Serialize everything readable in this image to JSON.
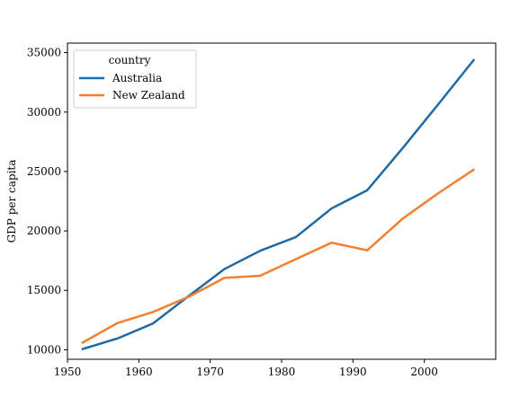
{
  "chart_data": {
    "type": "line",
    "title": "",
    "xlabel": "",
    "ylabel": "GDP per capita",
    "xlim": [
      1950,
      2010
    ],
    "ylim": [
      9200,
      35800
    ],
    "xticks": [
      1950,
      1960,
      1970,
      1980,
      1990,
      2000
    ],
    "yticks": [
      10000,
      15000,
      20000,
      25000,
      30000,
      35000
    ],
    "grid": false,
    "legend": {
      "title": "country",
      "placement": "top-left"
    },
    "series": [
      {
        "name": "Australia",
        "color": "#1f6aa5",
        "x": [
          1952,
          1957,
          1962,
          1967,
          1972,
          1977,
          1982,
          1987,
          1992,
          1997,
          2002,
          2007
        ],
        "y": [
          10040,
          10950,
          12220,
          14530,
          16790,
          18330,
          19480,
          21890,
          23420,
          26990,
          30690,
          34440
        ]
      },
      {
        "name": "New Zealand",
        "color": "#f37f31",
        "x": [
          1952,
          1957,
          1962,
          1967,
          1972,
          1977,
          1982,
          1987,
          1992,
          1997,
          2002,
          2007
        ],
        "y": [
          10560,
          12250,
          13180,
          14460,
          16050,
          16230,
          17630,
          19010,
          18370,
          21050,
          23190,
          25190
        ]
      }
    ]
  }
}
